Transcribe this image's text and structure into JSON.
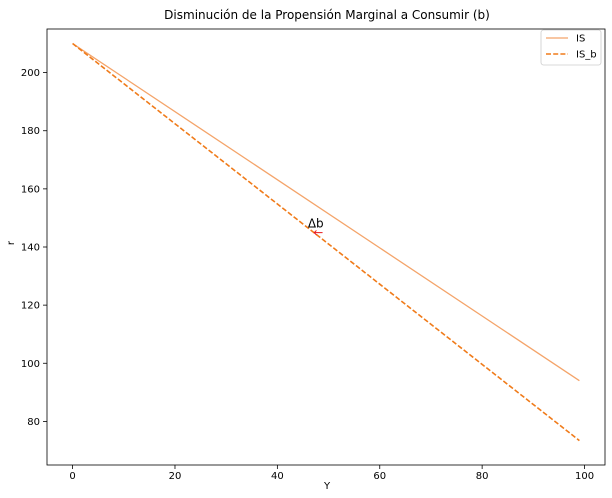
{
  "chart_data": {
    "type": "line",
    "title": "Disminución de la Propensión Marginal a Consumir ($b$)",
    "title_display": "Disminución de la Propensión Marginal a Consumir (b)",
    "xlabel": "Y",
    "ylabel": "r",
    "xlim": [
      -5,
      104
    ],
    "ylim": [
      65,
      215
    ],
    "xticks": [
      0,
      20,
      40,
      60,
      80,
      100
    ],
    "yticks": [
      80,
      100,
      120,
      140,
      160,
      180,
      200
    ],
    "grid": false,
    "legend_position": "top-right",
    "series": [
      {
        "name": "IS",
        "x": [
          0,
          99
        ],
        "values": [
          210,
          94
        ],
        "color": "#f4a46a",
        "linestyle": "solid"
      },
      {
        "name": "IS_b",
        "x": [
          0,
          99
        ],
        "values": [
          210,
          73.4
        ],
        "color": "#f07b1a",
        "linestyle": "dashed"
      }
    ],
    "annotations": [
      {
        "text": "Δb",
        "x": 47.5,
        "y": 148,
        "arrow": "←",
        "arrow_x": 48,
        "arrow_y": 145,
        "arrow_color": "#e8161b"
      }
    ]
  }
}
